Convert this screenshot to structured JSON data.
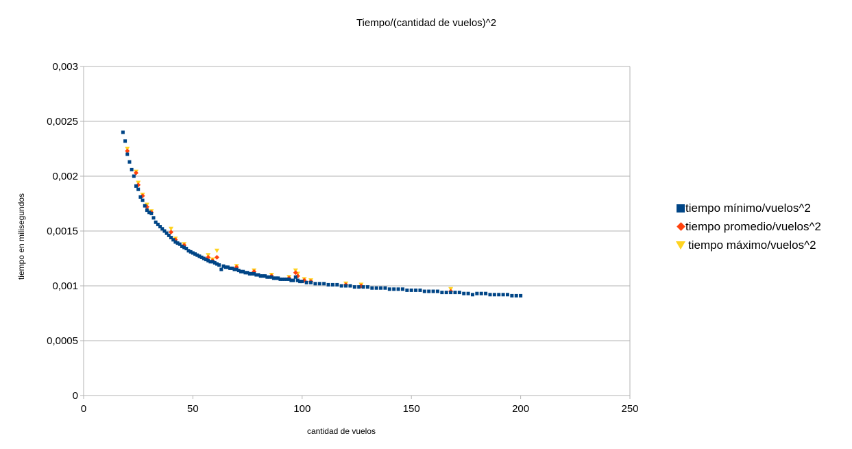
{
  "chart_data": {
    "type": "scatter",
    "title": "Tiempo/(cantidad de vuelos)^2",
    "xlabel": "cantidad de vuelos",
    "ylabel": "tiempo en milisegundos",
    "xlim": [
      0,
      250
    ],
    "ylim": [
      0,
      0.003
    ],
    "x_ticks": [
      "0",
      "50",
      "100",
      "150",
      "200",
      "250"
    ],
    "y_ticks": [
      "0",
      "0,0005",
      "0,001",
      "0,0015",
      "0,002",
      "0,0025",
      "0,003"
    ],
    "grid": true,
    "legend_position": "right",
    "series": [
      {
        "name": "tiempo mínimo/vuelos^2",
        "marker": "square",
        "color": "#004586",
        "points": [
          [
            18,
            0.0024
          ],
          [
            19,
            0.00232
          ],
          [
            20,
            0.0022
          ],
          [
            21,
            0.00213
          ],
          [
            22,
            0.00206
          ],
          [
            23,
            0.002
          ],
          [
            24,
            0.00191
          ],
          [
            25,
            0.00188
          ],
          [
            26,
            0.00181
          ],
          [
            27,
            0.00178
          ],
          [
            28,
            0.00173
          ],
          [
            29,
            0.00169
          ],
          [
            30,
            0.00167
          ],
          [
            31,
            0.00166
          ],
          [
            32,
            0.00162
          ],
          [
            33,
            0.00158
          ],
          [
            34,
            0.00156
          ],
          [
            35,
            0.00154
          ],
          [
            36,
            0.00152
          ],
          [
            37,
            0.0015
          ],
          [
            38,
            0.00148
          ],
          [
            39,
            0.00146
          ],
          [
            40,
            0.00144
          ],
          [
            41,
            0.00142
          ],
          [
            42,
            0.0014
          ],
          [
            43,
            0.00139
          ],
          [
            44,
            0.00138
          ],
          [
            45,
            0.00136
          ],
          [
            46,
            0.00135
          ],
          [
            47,
            0.00134
          ],
          [
            48,
            0.00132
          ],
          [
            49,
            0.00131
          ],
          [
            50,
            0.0013
          ],
          [
            51,
            0.00129
          ],
          [
            52,
            0.00128
          ],
          [
            53,
            0.00127
          ],
          [
            54,
            0.00126
          ],
          [
            55,
            0.00125
          ],
          [
            56,
            0.00124
          ],
          [
            57,
            0.00123
          ],
          [
            58,
            0.00122
          ],
          [
            59,
            0.00122
          ],
          [
            60,
            0.00121
          ],
          [
            61,
            0.0012
          ],
          [
            62,
            0.00119
          ],
          [
            63,
            0.00115
          ],
          [
            64,
            0.00118
          ],
          [
            65,
            0.00117
          ],
          [
            66,
            0.00117
          ],
          [
            67,
            0.00116
          ],
          [
            68,
            0.00116
          ],
          [
            69,
            0.00115
          ],
          [
            70,
            0.00115
          ],
          [
            71,
            0.00114
          ],
          [
            72,
            0.00113
          ],
          [
            73,
            0.00113
          ],
          [
            74,
            0.00112
          ],
          [
            75,
            0.00112
          ],
          [
            76,
            0.00111
          ],
          [
            77,
            0.00111
          ],
          [
            78,
            0.00111
          ],
          [
            79,
            0.0011
          ],
          [
            80,
            0.0011
          ],
          [
            81,
            0.00109
          ],
          [
            82,
            0.00109
          ],
          [
            83,
            0.00109
          ],
          [
            84,
            0.00108
          ],
          [
            85,
            0.00108
          ],
          [
            86,
            0.00108
          ],
          [
            87,
            0.00107
          ],
          [
            88,
            0.00107
          ],
          [
            89,
            0.00107
          ],
          [
            90,
            0.00106
          ],
          [
            91,
            0.00106
          ],
          [
            92,
            0.00106
          ],
          [
            93,
            0.00106
          ],
          [
            94,
            0.00106
          ],
          [
            95,
            0.00105
          ],
          [
            96,
            0.00105
          ],
          [
            97,
            0.00108
          ],
          [
            98,
            0.00105
          ],
          [
            99,
            0.00104
          ],
          [
            100,
            0.00104
          ],
          [
            102,
            0.00103
          ],
          [
            104,
            0.00103
          ],
          [
            106,
            0.00102
          ],
          [
            108,
            0.00102
          ],
          [
            110,
            0.00102
          ],
          [
            112,
            0.00101
          ],
          [
            114,
            0.00101
          ],
          [
            116,
            0.00101
          ],
          [
            118,
            0.001
          ],
          [
            120,
            0.001
          ],
          [
            122,
            0.001
          ],
          [
            124,
            0.00099
          ],
          [
            126,
            0.00099
          ],
          [
            128,
            0.00099
          ],
          [
            130,
            0.00099
          ],
          [
            132,
            0.00098
          ],
          [
            134,
            0.00098
          ],
          [
            136,
            0.00098
          ],
          [
            138,
            0.00098
          ],
          [
            140,
            0.00097
          ],
          [
            142,
            0.00097
          ],
          [
            144,
            0.00097
          ],
          [
            146,
            0.00097
          ],
          [
            148,
            0.00096
          ],
          [
            150,
            0.00096
          ],
          [
            152,
            0.00096
          ],
          [
            154,
            0.00096
          ],
          [
            156,
            0.00095
          ],
          [
            158,
            0.00095
          ],
          [
            160,
            0.00095
          ],
          [
            162,
            0.00095
          ],
          [
            164,
            0.00094
          ],
          [
            166,
            0.00094
          ],
          [
            168,
            0.00094
          ],
          [
            170,
            0.00094
          ],
          [
            172,
            0.00094
          ],
          [
            174,
            0.00093
          ],
          [
            176,
            0.00093
          ],
          [
            178,
            0.00092
          ],
          [
            180,
            0.00093
          ],
          [
            182,
            0.00093
          ],
          [
            184,
            0.00093
          ],
          [
            186,
            0.00092
          ],
          [
            188,
            0.00092
          ],
          [
            190,
            0.00092
          ],
          [
            192,
            0.00092
          ],
          [
            194,
            0.00092
          ],
          [
            196,
            0.00091
          ],
          [
            198,
            0.00091
          ],
          [
            200,
            0.00091
          ]
        ]
      },
      {
        "name": "tiempo promedio/vuelos^2",
        "marker": "diamond",
        "color": "#ff420e",
        "points": [
          [
            20,
            0.00223
          ],
          [
            24,
            0.00203
          ],
          [
            25,
            0.00192
          ],
          [
            27,
            0.00182
          ],
          [
            29,
            0.00172
          ],
          [
            31,
            0.00167
          ],
          [
            40,
            0.00149
          ],
          [
            42,
            0.00142
          ],
          [
            46,
            0.00137
          ],
          [
            57,
            0.00126
          ],
          [
            59,
            0.00123
          ],
          [
            61,
            0.00126
          ],
          [
            70,
            0.00117
          ],
          [
            78,
            0.00113
          ],
          [
            86,
            0.00109
          ],
          [
            94,
            0.00107
          ],
          [
            97,
            0.00112
          ],
          [
            98,
            0.00109
          ],
          [
            101,
            0.00105
          ],
          [
            104,
            0.00104
          ],
          [
            120,
            0.00101
          ],
          [
            127,
            0.001
          ],
          [
            168,
            0.00095
          ]
        ]
      },
      {
        "name": "tiempo máximo/vuelos^2",
        "marker": "triangle",
        "color": "#ffd320",
        "points": [
          [
            20,
            0.00225
          ],
          [
            24,
            0.00204
          ],
          [
            25,
            0.00194
          ],
          [
            27,
            0.00183
          ],
          [
            29,
            0.00174
          ],
          [
            31,
            0.00168
          ],
          [
            40,
            0.00152
          ],
          [
            42,
            0.00143
          ],
          [
            46,
            0.00138
          ],
          [
            57,
            0.00128
          ],
          [
            59,
            0.00124
          ],
          [
            61,
            0.00132
          ],
          [
            70,
            0.00118
          ],
          [
            78,
            0.00114
          ],
          [
            86,
            0.0011
          ],
          [
            94,
            0.00108
          ],
          [
            97,
            0.00114
          ],
          [
            98,
            0.00111
          ],
          [
            101,
            0.00106
          ],
          [
            104,
            0.00105
          ],
          [
            120,
            0.00102
          ],
          [
            127,
            0.00101
          ],
          [
            168,
            0.00097
          ]
        ]
      }
    ]
  }
}
